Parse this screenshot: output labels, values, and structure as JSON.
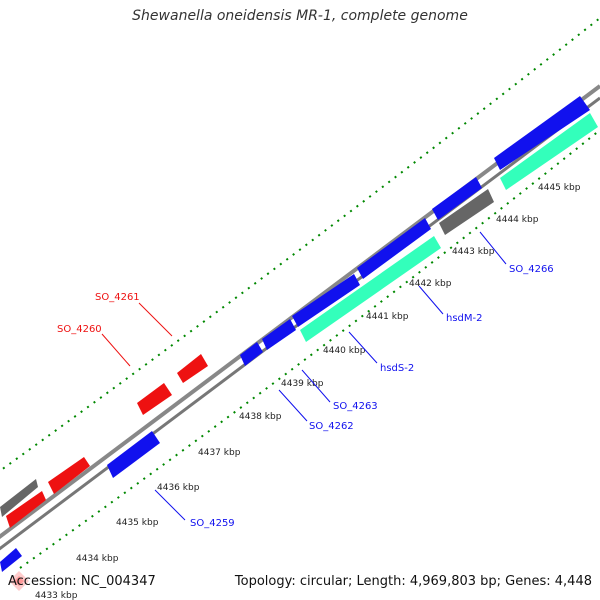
{
  "title": "Shewanella oneidensis MR-1, complete genome",
  "footer": {
    "accession": "Accession: NC_004347",
    "summary": "Topology: circular; Length: 4,969,803 bp; Genes: 4,448"
  },
  "colors": {
    "forward_cds": "#ff0000",
    "reverse_cds": "#0000ff",
    "rna": "#33ffbb",
    "other": "#666666",
    "backbone": "#888888",
    "tick": "#008800"
  },
  "ticks": [
    "4433 kbp",
    "4434 kbp",
    "4435 kbp",
    "4436 kbp",
    "4437 kbp",
    "4438 kbp",
    "4439 kbp",
    "4440 kbp",
    "4441 kbp",
    "4442 kbp",
    "4443 kbp",
    "4444 kbp",
    "4445 kbp"
  ],
  "labels": {
    "so_4261": "SO_4261",
    "so_4260": "SO_4260",
    "so_4259": "SO_4259",
    "so_4262": "SO_4262",
    "so_4263": "SO_4263",
    "hsds_2": "hsdS-2",
    "hsdm_2": "hsdM-2",
    "so_4266": "SO_4266"
  }
}
